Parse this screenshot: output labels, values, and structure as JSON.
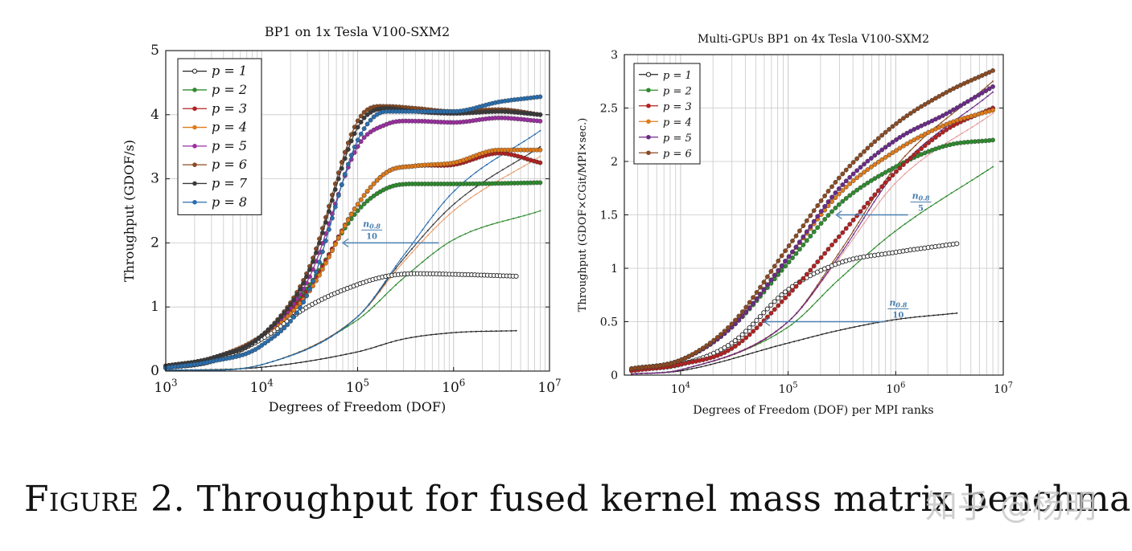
{
  "chart_data": [
    {
      "type": "line",
      "title": "BP1 on 1x Tesla V100-SXM2",
      "xlabel": "Degrees of Freedom (DOF)",
      "ylabel": "Throughput (GDOF/s)",
      "xscale": "log",
      "xlim": [
        1000,
        10000000
      ],
      "ylim": [
        0,
        5
      ],
      "yticks": [
        0,
        1,
        2,
        3,
        4,
        5
      ],
      "xticks": [
        "10^3",
        "10^4",
        "10^5",
        "10^6",
        "10^7"
      ],
      "grid": true,
      "legend_position": "top-left",
      "annotation": {
        "text_top": "n0.8",
        "text_bottom": "10",
        "y": 2.0,
        "x_from": 700000,
        "x_to": 70000
      },
      "series": [
        {
          "name": "p = 1",
          "color": "#222222",
          "marker": "open-circle",
          "x": [
            1000,
            3000,
            10000,
            30000,
            100000,
            200000,
            400000,
            1000000,
            4500000
          ],
          "y": [
            0.05,
            0.15,
            0.5,
            1.0,
            1.35,
            1.48,
            1.52,
            1.51,
            1.48
          ]
        },
        {
          "name": "p = 2",
          "color": "#2e8b2e",
          "marker": "dot",
          "x": [
            1000,
            3000,
            10000,
            30000,
            100000,
            200000,
            400000,
            1000000,
            8000000
          ],
          "y": [
            0.08,
            0.2,
            0.55,
            1.3,
            2.5,
            2.85,
            2.92,
            2.92,
            2.94
          ]
        },
        {
          "name": "p = 3",
          "color": "#b22222",
          "marker": "dot",
          "x": [
            1000,
            3000,
            10000,
            30000,
            100000,
            200000,
            400000,
            1000000,
            3000000,
            8000000
          ],
          "y": [
            0.08,
            0.2,
            0.55,
            1.25,
            2.6,
            3.1,
            3.2,
            3.22,
            3.4,
            3.25
          ]
        },
        {
          "name": "p = 4",
          "color": "#e07b1a",
          "marker": "dot",
          "x": [
            1000,
            3000,
            10000,
            30000,
            100000,
            200000,
            400000,
            1000000,
            3000000,
            8000000
          ],
          "y": [
            0.08,
            0.2,
            0.55,
            1.2,
            2.6,
            3.1,
            3.2,
            3.25,
            3.45,
            3.45
          ]
        },
        {
          "name": "p = 5",
          "color": "#9b2fa0",
          "marker": "dot",
          "x": [
            1000,
            3000,
            10000,
            30000,
            100000,
            200000,
            400000,
            1000000,
            3000000,
            8000000
          ],
          "y": [
            0.08,
            0.2,
            0.55,
            1.4,
            3.5,
            3.85,
            3.9,
            3.88,
            3.95,
            3.9
          ]
        },
        {
          "name": "p = 6",
          "color": "#8b4a22",
          "marker": "dot",
          "x": [
            1000,
            3000,
            10000,
            30000,
            100000,
            200000,
            400000,
            1000000,
            3000000,
            8000000
          ],
          "y": [
            0.08,
            0.2,
            0.55,
            1.55,
            3.9,
            4.13,
            4.1,
            4.05,
            4.08,
            4.0
          ]
        },
        {
          "name": "p = 7",
          "color": "#3a3a3a",
          "marker": "dot",
          "x": [
            1000,
            3000,
            10000,
            30000,
            100000,
            200000,
            400000,
            1000000,
            3000000,
            8000000
          ],
          "y": [
            0.08,
            0.2,
            0.55,
            1.5,
            3.8,
            4.1,
            4.05,
            4.02,
            4.05,
            4.0
          ]
        },
        {
          "name": "p = 8",
          "color": "#2a6ead",
          "marker": "dot",
          "x": [
            1000,
            3000,
            10000,
            30000,
            100000,
            200000,
            400000,
            1000000,
            3000000,
            8000000
          ],
          "y": [
            0.05,
            0.15,
            0.4,
            1.2,
            3.6,
            4.05,
            4.05,
            4.05,
            4.2,
            4.28
          ]
        }
      ],
      "unlabeled_series": [
        {
          "color": "#222222",
          "x": [
            1000,
            10000,
            100000,
            300000,
            1000000,
            4500000
          ],
          "y": [
            0.01,
            0.06,
            0.3,
            0.5,
            0.6,
            0.63
          ]
        },
        {
          "color": "#2e8b2e",
          "x": [
            1000,
            10000,
            100000,
            300000,
            1000000,
            8000000
          ],
          "y": [
            0.01,
            0.1,
            0.8,
            1.45,
            2.05,
            2.5
          ]
        },
        {
          "color": "#e8a070",
          "x": [
            1000,
            10000,
            100000,
            300000,
            1000000,
            8000000
          ],
          "y": [
            0.01,
            0.1,
            0.85,
            1.7,
            2.5,
            3.35
          ]
        },
        {
          "color": "#3a3a3a",
          "x": [
            1000,
            10000,
            100000,
            300000,
            1000000,
            8000000
          ],
          "y": [
            0.01,
            0.1,
            0.85,
            1.75,
            2.6,
            3.5
          ]
        },
        {
          "color": "#2a6ead",
          "x": [
            1000,
            10000,
            100000,
            300000,
            1000000,
            8000000
          ],
          "y": [
            0.01,
            0.1,
            0.85,
            1.8,
            2.8,
            3.75
          ]
        }
      ]
    },
    {
      "type": "line",
      "title": "Multi-GPUs BP1 on 4x Tesla V100-SXM2",
      "xlabel": "Degrees of Freedom (DOF) per MPI ranks",
      "ylabel": "Throughput (GDOF×CGit/MPI×sec.)",
      "xscale": "log",
      "xlim": [
        3000,
        10000000
      ],
      "ylim": [
        0,
        3
      ],
      "yticks": [
        "0",
        "0.5",
        "1",
        "1.5",
        "2",
        "2.5",
        "3"
      ],
      "xticks": [
        "10^4",
        "10^5",
        "10^6",
        "10^7"
      ],
      "grid": true,
      "legend_position": "top-left",
      "annotations": [
        {
          "text_top": "n0.8",
          "text_bottom": "5",
          "y": 1.5,
          "x_from": 1300000,
          "x_to": 280000
        },
        {
          "text_top": "n0.8",
          "text_bottom": "10",
          "y": 0.5,
          "x_from": 800000,
          "x_to": 60000
        }
      ],
      "series": [
        {
          "name": "p = 1",
          "color": "#222222",
          "marker": "open-circle",
          "x": [
            3500,
            10000,
            30000,
            100000,
            300000,
            1000000,
            3700000
          ],
          "y": [
            0.05,
            0.1,
            0.3,
            0.8,
            1.05,
            1.15,
            1.23
          ]
        },
        {
          "name": "p = 2",
          "color": "#2e8b2e",
          "marker": "dot",
          "x": [
            3500,
            10000,
            30000,
            100000,
            300000,
            1000000,
            3000000,
            8000000
          ],
          "y": [
            0.06,
            0.14,
            0.45,
            1.05,
            1.6,
            1.95,
            2.15,
            2.2
          ]
        },
        {
          "name": "p = 3",
          "color": "#b22222",
          "marker": "dot",
          "x": [
            3500,
            10000,
            30000,
            100000,
            300000,
            1000000,
            3000000,
            8000000
          ],
          "y": [
            0.04,
            0.1,
            0.25,
            0.75,
            1.3,
            1.9,
            2.3,
            2.5
          ]
        },
        {
          "name": "p = 4",
          "color": "#e07b1a",
          "marker": "dot",
          "x": [
            3500,
            10000,
            30000,
            100000,
            300000,
            1000000,
            3000000,
            8000000
          ],
          "y": [
            0.06,
            0.14,
            0.45,
            1.1,
            1.7,
            2.1,
            2.35,
            2.48
          ]
        },
        {
          "name": "p = 5",
          "color": "#6b2a8a",
          "marker": "dot",
          "x": [
            3500,
            10000,
            30000,
            100000,
            300000,
            1000000,
            3000000,
            8000000
          ],
          "y": [
            0.06,
            0.14,
            0.45,
            1.1,
            1.75,
            2.2,
            2.45,
            2.7
          ]
        },
        {
          "name": "p = 6",
          "color": "#8b4a22",
          "marker": "dot",
          "x": [
            3500,
            10000,
            30000,
            100000,
            300000,
            1000000,
            3000000,
            8000000
          ],
          "y": [
            0.06,
            0.14,
            0.48,
            1.2,
            1.85,
            2.35,
            2.65,
            2.85
          ]
        }
      ],
      "unlabeled_series": [
        {
          "color": "#222222",
          "x": [
            3500,
            10000,
            100000,
            300000,
            1000000,
            3700000
          ],
          "y": [
            0.01,
            0.04,
            0.3,
            0.42,
            0.52,
            0.58
          ]
        },
        {
          "color": "#2e8b2e",
          "x": [
            3500,
            10000,
            100000,
            300000,
            1000000,
            8000000
          ],
          "y": [
            0.01,
            0.05,
            0.45,
            0.9,
            1.35,
            1.95
          ]
        },
        {
          "color": "#e8a0a0",
          "x": [
            3500,
            10000,
            100000,
            300000,
            1000000,
            8000000
          ],
          "y": [
            0.01,
            0.05,
            0.5,
            1.1,
            1.8,
            2.45
          ]
        },
        {
          "color": "#8b4a22",
          "x": [
            3500,
            10000,
            100000,
            300000,
            1000000,
            8000000
          ],
          "y": [
            0.01,
            0.05,
            0.5,
            1.15,
            1.95,
            2.75
          ]
        },
        {
          "color": "#6b2a8a",
          "x": [
            3500,
            10000,
            100000,
            300000,
            1000000,
            8000000
          ],
          "y": [
            0.01,
            0.05,
            0.5,
            1.12,
            1.9,
            2.65
          ]
        }
      ]
    }
  ],
  "caption": {
    "label": "Figure 2.",
    "text": "Throughput for fused kernel mass matrix benchmark"
  },
  "watermark": "知乎 @杨明"
}
